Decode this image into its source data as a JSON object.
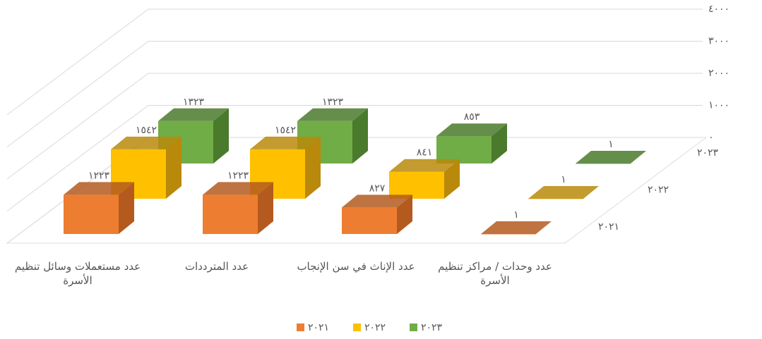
{
  "chart_data": {
    "type": "bar3d",
    "categories": [
      "عدد مستعملات وسائل تنظيم الأسرة",
      "عدد المترددات",
      "عدد الإناث في سن الإنجاب",
      "عدد وحدات / مراكز تنظيم الأسرة"
    ],
    "series": [
      {
        "name": "٢٠٢١",
        "color": "#ed7d31",
        "side": "#b45a1e",
        "values": [
          1223,
          1223,
          827,
          1
        ],
        "value_labels": [
          "١٢٢٣",
          "١٢٢٣",
          "٨٢٧",
          "١"
        ]
      },
      {
        "name": "٢٠٢٢",
        "color": "#ffc000",
        "side": "#b8890a",
        "values": [
          1542,
          1542,
          841,
          1
        ],
        "value_labels": [
          "١٥٤٢",
          "١٥٤٢",
          "٨٤١",
          "١"
        ]
      },
      {
        "name": "٢٠٢٣",
        "color": "#70ad47",
        "side": "#4a7a2c",
        "values": [
          1323,
          1323,
          853,
          1
        ],
        "value_labels": [
          "١٣٢٣",
          "١٣٢٣",
          "٨٥٣",
          "١"
        ]
      }
    ],
    "ylim": [
      0,
      4000
    ],
    "yticks": [
      {
        "value": 0,
        "label": "٠"
      },
      {
        "value": 1000,
        "label": "١٠٠٠"
      },
      {
        "value": 2000,
        "label": "٢٠٠٠"
      },
      {
        "value": 3000,
        "label": "٣٠٠٠"
      },
      {
        "value": 4000,
        "label": "٤٠٠٠"
      }
    ],
    "grid": true,
    "legend": "bottom"
  }
}
